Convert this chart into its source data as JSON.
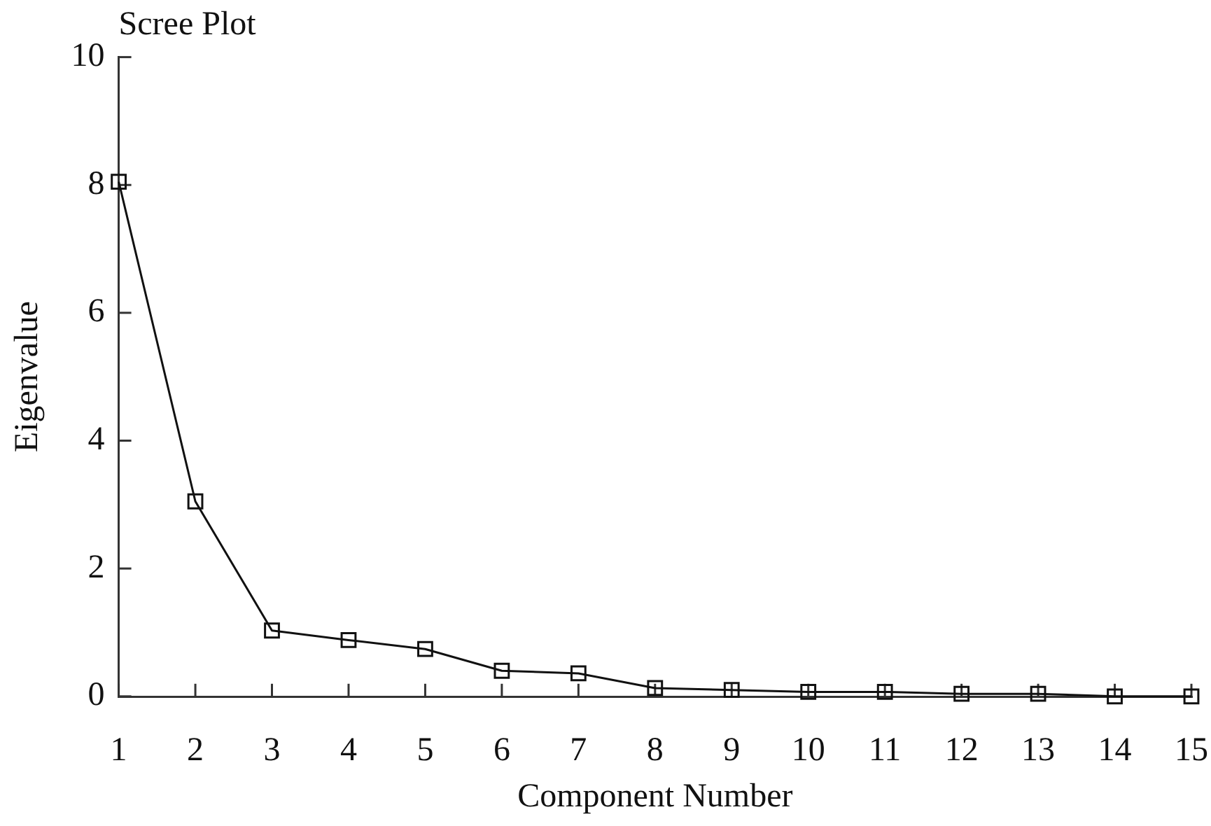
{
  "chart_data": {
    "type": "line",
    "title": "Scree Plot",
    "xlabel": "Component Number",
    "ylabel": "Eigenvalue",
    "x": [
      1,
      2,
      3,
      4,
      5,
      6,
      7,
      8,
      9,
      10,
      11,
      12,
      13,
      14,
      15
    ],
    "values": [
      8.05,
      3.05,
      1.03,
      0.88,
      0.74,
      0.4,
      0.36,
      0.13,
      0.1,
      0.07,
      0.07,
      0.04,
      0.04,
      0,
      0
    ],
    "color": "#111111",
    "xlim": [
      1,
      15
    ],
    "xticks": [
      1,
      2,
      3,
      4,
      5,
      6,
      7,
      8,
      9,
      10,
      11,
      12,
      13,
      14,
      15
    ],
    "ylim": [
      0,
      10
    ],
    "yticks": [
      0,
      2,
      4,
      6,
      8,
      10
    ],
    "grid": false,
    "legend": false,
    "marker": "square",
    "line_style": "solid"
  }
}
